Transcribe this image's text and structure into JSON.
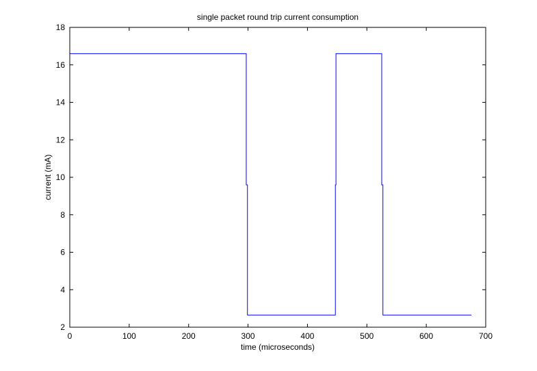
{
  "chart_data": {
    "type": "line",
    "title": "single packet round trip current consumption",
    "xlabel": "time (microseconds)",
    "ylabel": "current (mA)",
    "xlim": [
      0,
      700
    ],
    "ylim": [
      2,
      18
    ],
    "xticks": [
      0,
      100,
      200,
      300,
      400,
      500,
      600,
      700
    ],
    "yticks": [
      2,
      4,
      6,
      8,
      10,
      12,
      14,
      16,
      18
    ],
    "grid": false,
    "legend": "none",
    "series": [
      {
        "color": "#0000ff",
        "x": [
          0,
          297,
          297,
          299,
          299,
          447,
          447,
          448,
          448,
          450,
          450,
          525,
          525,
          527,
          527,
          676
        ],
        "y": [
          16.6,
          16.6,
          9.6,
          9.6,
          2.65,
          2.65,
          9.6,
          9.6,
          16.6,
          16.6,
          16.6,
          16.6,
          9.6,
          9.6,
          2.65,
          2.65
        ]
      }
    ]
  }
}
